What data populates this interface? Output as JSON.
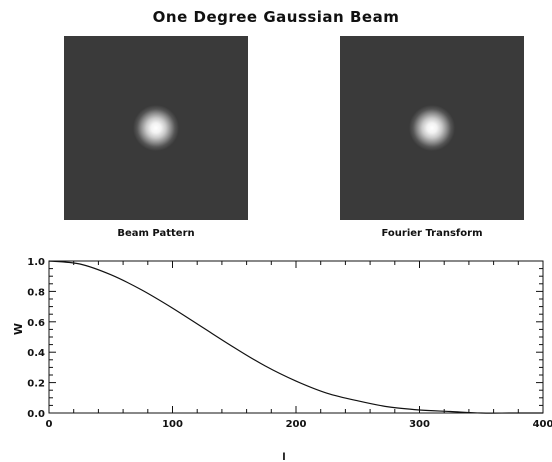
{
  "title": "One Degree Gaussian Beam",
  "panels": {
    "left_caption": "Beam Pattern",
    "right_caption": "Fourier Transform"
  },
  "colors": {
    "panel_background": "#3a3a3a",
    "beam_center": "#ffffff",
    "curve": "#111111"
  },
  "chart_data": {
    "type": "line",
    "title": "",
    "xlabel": "l",
    "ylabel": "W",
    "xlim": [
      0,
      400
    ],
    "ylim": [
      0.0,
      1.0
    ],
    "xticks": [
      "0",
      "100",
      "200",
      "300",
      "400"
    ],
    "yticks": [
      "0.0",
      "0.2",
      "0.4",
      "0.6",
      "0.8",
      "1.0"
    ],
    "grid": false,
    "series": [
      {
        "x": [
          0,
          25,
          50,
          75,
          100,
          125,
          150,
          175,
          200,
          225,
          250,
          275,
          300,
          325,
          350,
          375,
          400
        ],
        "y": [
          1.0,
          0.98,
          0.91,
          0.81,
          0.69,
          0.56,
          0.43,
          0.31,
          0.21,
          0.13,
          0.08,
          0.04,
          0.02,
          0.01,
          0.0,
          0.0,
          0.0
        ]
      }
    ]
  }
}
